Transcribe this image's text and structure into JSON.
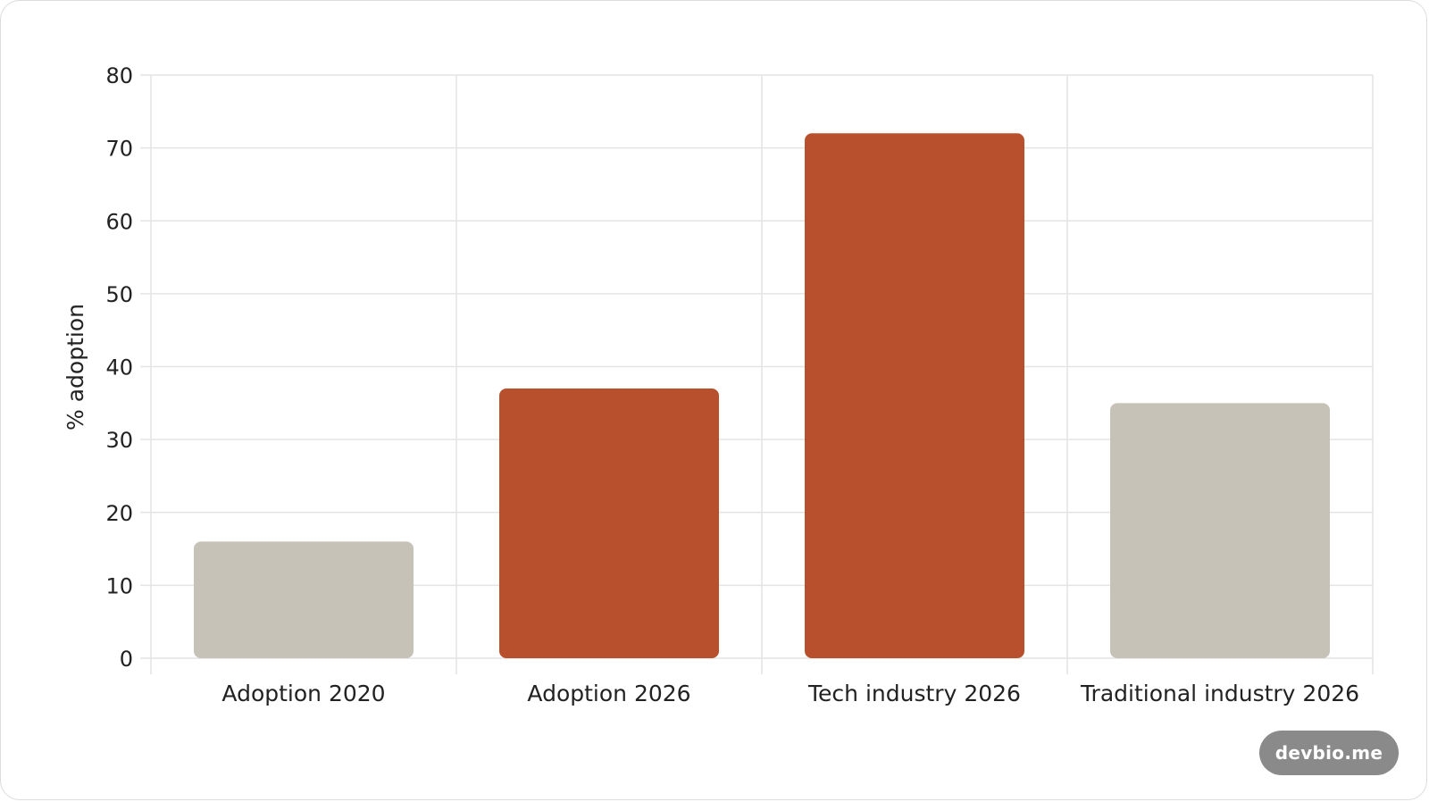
{
  "chart_data": {
    "type": "bar",
    "categories": [
      "Adoption 2020",
      "Adoption 2026",
      "Tech industry 2026",
      "Traditional industry 2026"
    ],
    "values": [
      16,
      37,
      72,
      35
    ],
    "bar_colors": [
      "#c6c2b7",
      "#b8502d",
      "#b8502d",
      "#c6c2b7"
    ],
    "xlabel": "",
    "ylabel": "% adoption",
    "ylim": [
      0,
      80
    ],
    "yticks": [
      0,
      10,
      20,
      30,
      40,
      50,
      60,
      70,
      80
    ],
    "grid": true,
    "legend": "none"
  },
  "colors": {
    "grid": "#e4e4e4",
    "text": "#222222",
    "badge_bg": "#8a8a8a"
  },
  "watermark": {
    "text": "devbio.me"
  }
}
